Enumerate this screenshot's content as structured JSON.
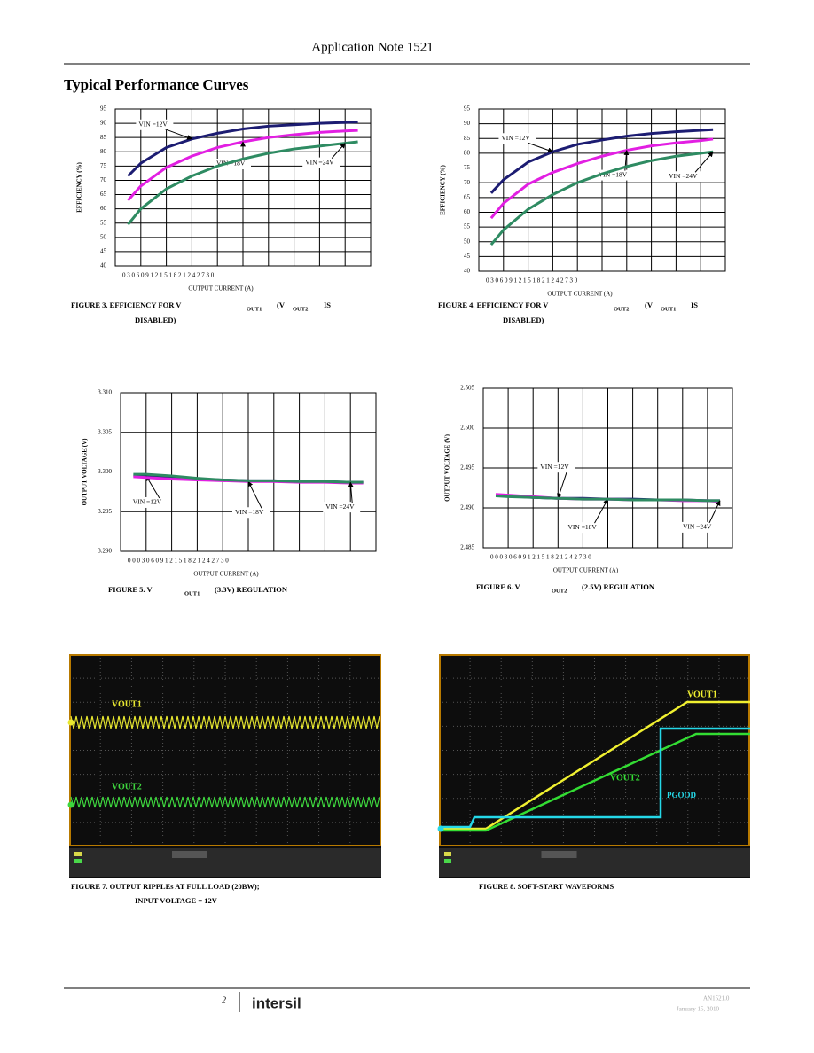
{
  "header": {
    "title": "Application Note 1521"
  },
  "section_title": "Typical Performance Curves",
  "chart_data": [
    {
      "type": "line",
      "y_label": "EFFICIENCY (%)",
      "x_label": "OUTPUT CURRENT (A)",
      "xtick_text": "0 3 0 6 0 9 1 2 1 5 1 8 2 1 2 4 2 7 3 0",
      "x": [
        0.15,
        0.3,
        0.6,
        0.9,
        1.2,
        1.5,
        1.8,
        2.1,
        2.4,
        2.7,
        2.85
      ],
      "xlim": [
        0,
        3
      ],
      "xticks": [
        0,
        0.3,
        0.6,
        0.9,
        1.2,
        1.5,
        1.8,
        2.1,
        2.4,
        2.7,
        3
      ],
      "ylim": [
        40,
        95
      ],
      "yticks": [
        40,
        45,
        50,
        55,
        60,
        65,
        70,
        75,
        80,
        85,
        90,
        95
      ],
      "grid": true,
      "series": [
        {
          "name": "VIN =12V",
          "color": "#1c1c72",
          "values": [
            71.5,
            76,
            81.5,
            84.5,
            86.5,
            88,
            89,
            89.5,
            90,
            90.3,
            90.5
          ]
        },
        {
          "name": "VIN =18V",
          "color": "#e21fe2",
          "values": [
            63,
            68,
            74.5,
            78.5,
            81.5,
            83.5,
            85,
            86,
            86.8,
            87.3,
            87.5
          ]
        },
        {
          "name": "VIN =24V",
          "color": "#2e8b62",
          "values": [
            54.5,
            60,
            67,
            71.5,
            75,
            77.5,
            79.5,
            81,
            82,
            83,
            83.5
          ]
        }
      ]
    },
    {
      "type": "line",
      "y_label": "EFFICIENCY (%)",
      "x_label": "OUTPUT CURRENT (A)",
      "xtick_text": "0 3 0 6 0 9 1 2 1 5 1 8 2 1 2 4 2 7 3 0",
      "x": [
        0.15,
        0.3,
        0.6,
        0.9,
        1.2,
        1.5,
        1.8,
        2.1,
        2.4,
        2.7,
        2.85
      ],
      "xlim": [
        0,
        3
      ],
      "xticks": [
        0,
        0.3,
        0.6,
        0.9,
        1.2,
        1.5,
        1.8,
        2.1,
        2.4,
        2.7,
        3
      ],
      "ylim": [
        40,
        95
      ],
      "yticks": [
        40,
        45,
        50,
        55,
        60,
        65,
        70,
        75,
        80,
        85,
        90,
        95
      ],
      "grid": true,
      "series": [
        {
          "name": "VIN =12V",
          "color": "#1c1c72",
          "values": [
            66.5,
            71,
            77,
            80.5,
            83,
            84.5,
            85.8,
            86.7,
            87.3,
            87.8,
            88
          ]
        },
        {
          "name": "VIN =18V",
          "color": "#e21fe2",
          "values": [
            58,
            63,
            69.5,
            73.5,
            76.5,
            79,
            81,
            82.5,
            83.5,
            84.3,
            84.8
          ]
        },
        {
          "name": "VIN =24V",
          "color": "#2e8b62",
          "values": [
            49,
            54,
            61,
            66,
            70,
            73,
            75.5,
            77.5,
            79,
            80,
            80.5
          ]
        }
      ]
    },
    {
      "type": "line",
      "y_label": "OUTPUT VOLTAGE (V)",
      "x_label": "OUTPUT CURRENT (A)",
      "xtick_text": "0 0 0 3 0 6 0 9 1 2 1 5 1 8 2 1 2 4 2 7 3 0",
      "x": [
        0.15,
        0.3,
        0.6,
        0.9,
        1.2,
        1.5,
        1.8,
        2.1,
        2.4,
        2.7,
        2.85
      ],
      "xlim": [
        0,
        3
      ],
      "xticks": [
        0,
        0.3,
        0.6,
        0.9,
        1.2,
        1.5,
        1.8,
        2.1,
        2.4,
        2.7,
        3
      ],
      "ylim": [
        3.29,
        3.31
      ],
      "yticks": [
        {
          "value": 3.29,
          "label": "3.290"
        },
        3.295,
        {
          "value": 3.3,
          "label": "3.300"
        },
        3.305,
        {
          "value": 3.31,
          "label": "3.310"
        }
      ],
      "grid": true,
      "series": [
        {
          "name": "VIN =12V",
          "color": "#1c1c72",
          "values": [
            3.2996,
            3.2995,
            3.2993,
            3.2991,
            3.299,
            3.2989,
            3.2989,
            3.2988,
            3.2988,
            3.2987,
            3.2987
          ]
        },
        {
          "name": "VIN =18V",
          "color": "#e21fe2",
          "values": [
            3.2994,
            3.2993,
            3.2991,
            3.299,
            3.2989,
            3.2988,
            3.2988,
            3.2987,
            3.2987,
            3.2986,
            3.2986
          ]
        },
        {
          "name": "VIN =24V",
          "color": "#2e8b62",
          "values": [
            3.2997,
            3.2997,
            3.2995,
            3.2992,
            3.299,
            3.2989,
            3.2989,
            3.2988,
            3.2988,
            3.2987,
            3.2987
          ]
        }
      ]
    },
    {
      "type": "line",
      "y_label": "OUTPUT VOLTAGE (V)",
      "x_label": "OUTPUT CURRENT (A)",
      "xtick_text": "0 0 0 3 0 6 0 9 1 2 1 5 1 8 2 1 2 4 2 7 3 0",
      "x": [
        0.15,
        0.3,
        0.6,
        0.9,
        1.2,
        1.5,
        1.8,
        2.1,
        2.4,
        2.7,
        2.85
      ],
      "xlim": [
        0,
        3
      ],
      "xticks": [
        0,
        0.3,
        0.6,
        0.9,
        1.2,
        1.5,
        1.8,
        2.1,
        2.4,
        2.7,
        3
      ],
      "ylim": [
        2.485,
        2.505
      ],
      "yticks": [
        2.485,
        {
          "value": 2.49,
          "label": "2.490"
        },
        2.495,
        {
          "value": 2.5,
          "label": "2.500"
        },
        2.505
      ],
      "grid": true,
      "series": [
        {
          "name": "VIN =12V",
          "color": "#1c1c72",
          "values": [
            2.4916,
            2.4915,
            2.4913,
            2.4912,
            2.4912,
            2.4911,
            2.4911,
            2.491,
            2.491,
            2.4909,
            2.4909
          ]
        },
        {
          "name": "VIN =18V",
          "color": "#e21fe2",
          "values": [
            2.4917,
            2.4916,
            2.4914,
            2.4912,
            2.4911,
            2.4911,
            2.491,
            2.491,
            2.4909,
            2.4909,
            2.4908
          ]
        },
        {
          "name": "VIN =24V",
          "color": "#2e8b62",
          "values": [
            2.4915,
            2.4914,
            2.4913,
            2.4912,
            2.4911,
            2.4911,
            2.491,
            2.491,
            2.491,
            2.4909,
            2.4909
          ]
        }
      ]
    }
  ],
  "captions": [
    [
      "FIGURE 3. EFFICIENCY FOR V",
      "OUT1",
      "(V",
      "OUT2",
      "IS",
      "DISABLED)"
    ],
    [
      "FIGURE 4. EFFICIENCY FOR V",
      "OUT2",
      "(V",
      "OUT1",
      "IS",
      "DISABLED)"
    ],
    [
      "FIGURE 5. V",
      "OUT1",
      "(3.3V) REGULATION"
    ],
    [
      "FIGURE 6. V",
      "OUT2",
      "(2.5V) REGULATION"
    ]
  ],
  "scopes": [
    {
      "labels": [
        "VOUT1",
        "VOUT2"
      ],
      "caption": [
        "FIGURE 7. OUTPUT RIPPLEs AT FULL LOAD (20BW);",
        "INPUT VOLTAGE = 12V"
      ]
    },
    {
      "labels": [
        "VOUT1",
        "VOUT2",
        "PGOOD"
      ],
      "caption": [
        "FIGURE 8. SOFT-START WAVEFORMS"
      ]
    }
  ],
  "footer": {
    "page": "2",
    "logo": "intersil",
    "doc": "AN1521.0",
    "date": "January 15, 2010"
  }
}
